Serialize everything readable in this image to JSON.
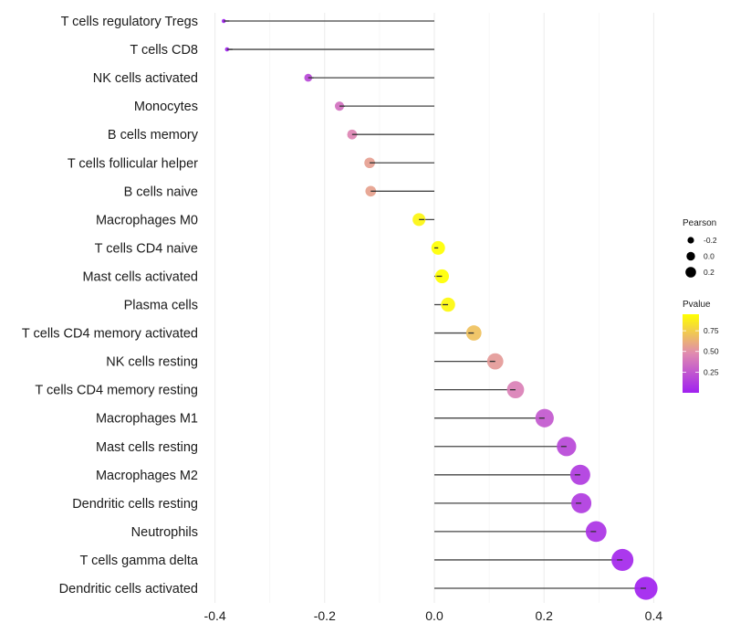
{
  "chart_data": {
    "type": "lollipop",
    "title": "",
    "xlabel": "",
    "ylabel": "",
    "xlim": [
      -0.42,
      0.41
    ],
    "x_ticks": [
      -0.4,
      -0.2,
      0.0,
      0.2,
      0.4
    ],
    "x_tick_labels": [
      "-0.4",
      "-0.2",
      "0.0",
      "0.2",
      "0.4"
    ],
    "grid": true,
    "categories": [
      "T cells regulatory  Tregs",
      "T cells CD8",
      "NK cells activated",
      "Monocytes",
      "B cells memory",
      "T cells follicular helper",
      "B cells naive",
      "Macrophages M0",
      "T cells CD4 naive",
      "Mast cells activated",
      "Plasma cells",
      "T cells CD4 memory activated",
      "NK cells resting",
      "T cells CD4 memory resting",
      "Macrophages M1",
      "Mast cells resting",
      "Macrophages M2",
      "Dendritic cells resting",
      "Neutrophils",
      "T cells gamma delta",
      "Dendritic cells activated"
    ],
    "pearson": [
      -0.384,
      -0.378,
      -0.23,
      -0.173,
      -0.15,
      -0.118,
      -0.116,
      -0.028,
      0.007,
      0.014,
      0.025,
      0.072,
      0.111,
      0.148,
      0.201,
      0.241,
      0.266,
      0.268,
      0.295,
      0.343,
      0.386
    ],
    "pvalue": [
      0.0,
      0.01,
      0.18,
      0.36,
      0.45,
      0.56,
      0.57,
      0.91,
      0.97,
      0.95,
      0.92,
      0.7,
      0.54,
      0.43,
      0.25,
      0.18,
      0.12,
      0.12,
      0.08,
      0.03,
      0.01
    ],
    "legend": {
      "position": "right",
      "size_title": "Pearson",
      "size_entries": [
        "-0.2",
        "0.0",
        "0.2"
      ],
      "size_values": [
        -0.2,
        0.0,
        0.2
      ],
      "color_title": "Pvalue",
      "color_ticks": [
        0.25,
        0.5,
        0.75
      ],
      "color_tick_labels": [
        "0.25",
        "0.50",
        "0.75"
      ],
      "color_range": [
        0.0,
        0.95
      ],
      "color_low": "#a020f0",
      "color_mid": "#e08ab0",
      "color_high": "#ffff00"
    },
    "segment_color": "#444444"
  }
}
